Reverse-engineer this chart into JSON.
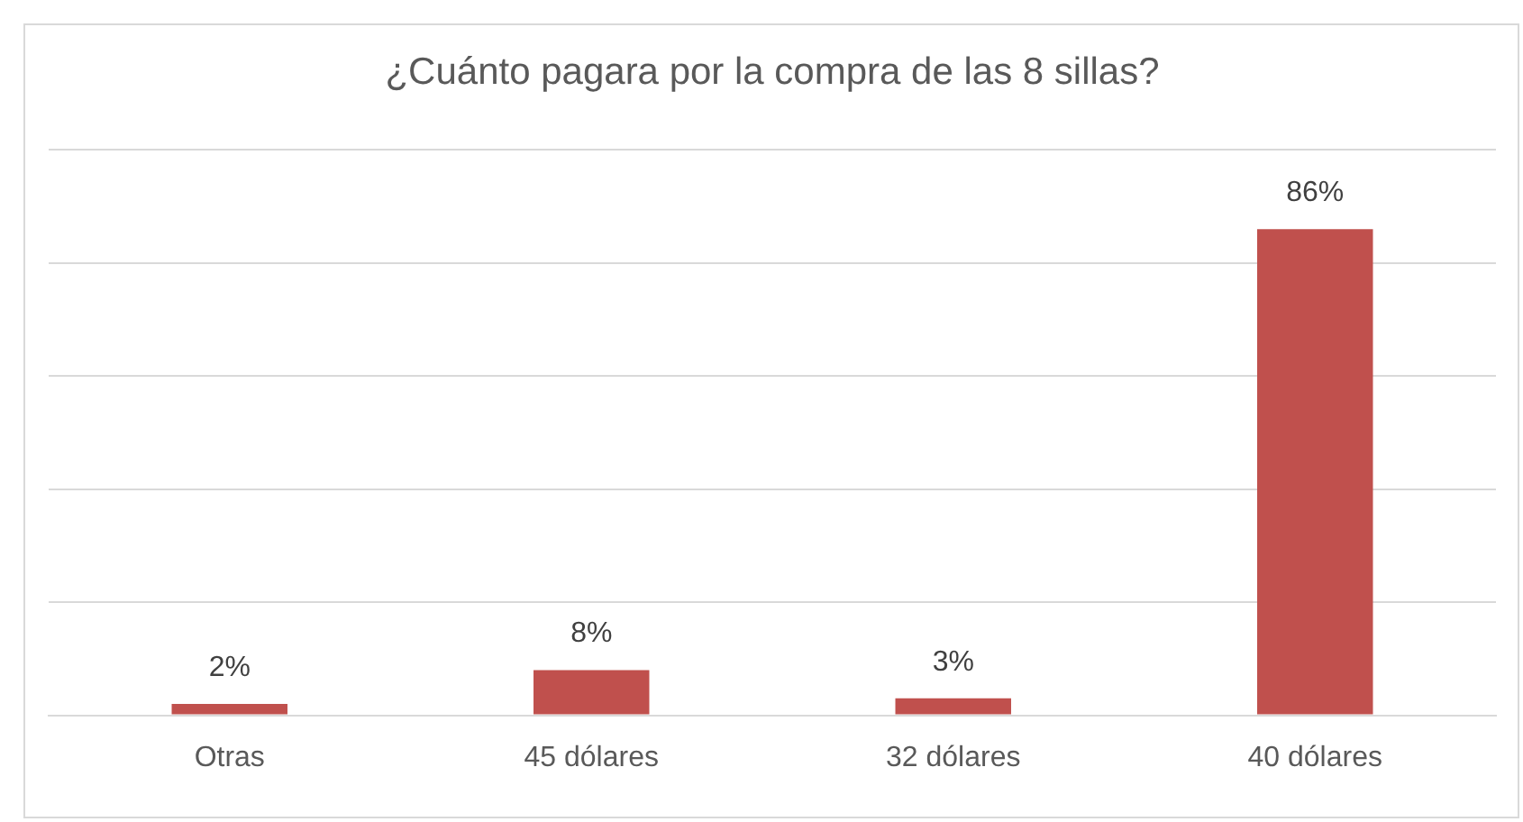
{
  "chart_data": {
    "type": "bar",
    "title": "¿Cuánto pagara por la compra de las 8 sillas?",
    "categories": [
      "Otras",
      "45 dólares",
      "32 dólares",
      "40 dólares"
    ],
    "values": [
      2,
      8,
      3,
      86
    ],
    "color": "#c0504d",
    "value_labels": [
      "2%",
      "8%",
      "3%",
      "86%"
    ],
    "ylim": [
      0,
      100
    ],
    "yticks": [
      {
        "value": 0,
        "label": null
      },
      {
        "value": 20,
        "label": null
      },
      {
        "value": 40,
        "label": null
      },
      {
        "value": 60,
        "label": null
      },
      {
        "value": 80,
        "label": null
      },
      {
        "value": 100,
        "label": null
      }
    ],
    "grid": "y",
    "tick_labels": "x"
  }
}
